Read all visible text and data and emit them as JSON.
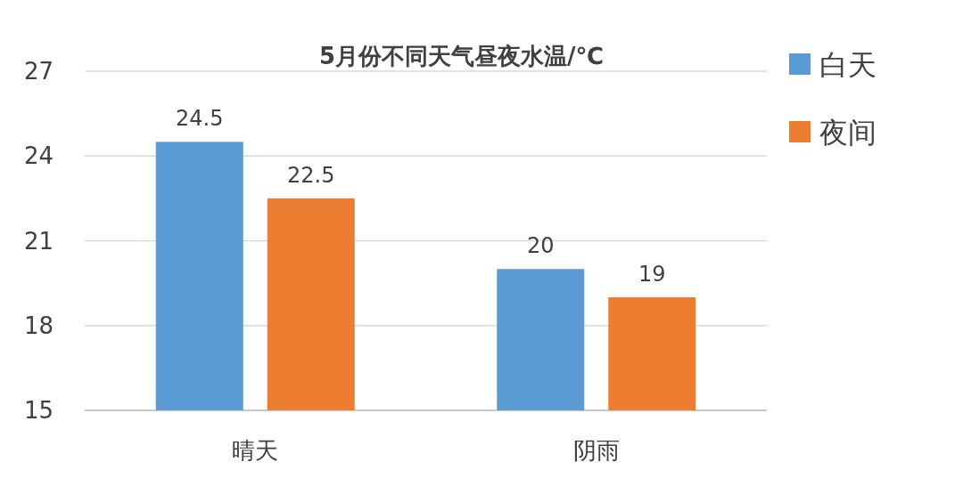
{
  "chart_data": {
    "type": "bar",
    "title": "5月份不同天气昼夜水温/℃",
    "categories": [
      "晴天",
      "阴雨"
    ],
    "series": [
      {
        "name": "白天",
        "color": "#5b9bd5",
        "values": [
          24.5,
          20
        ]
      },
      {
        "name": "夜间",
        "color": "#ed7d31",
        "values": [
          22.5,
          19
        ]
      }
    ],
    "ylim": [
      15,
      27
    ],
    "yticks": [
      15,
      18,
      21,
      24,
      27
    ],
    "grid": "y",
    "data_labels": true,
    "legend": "top right"
  }
}
